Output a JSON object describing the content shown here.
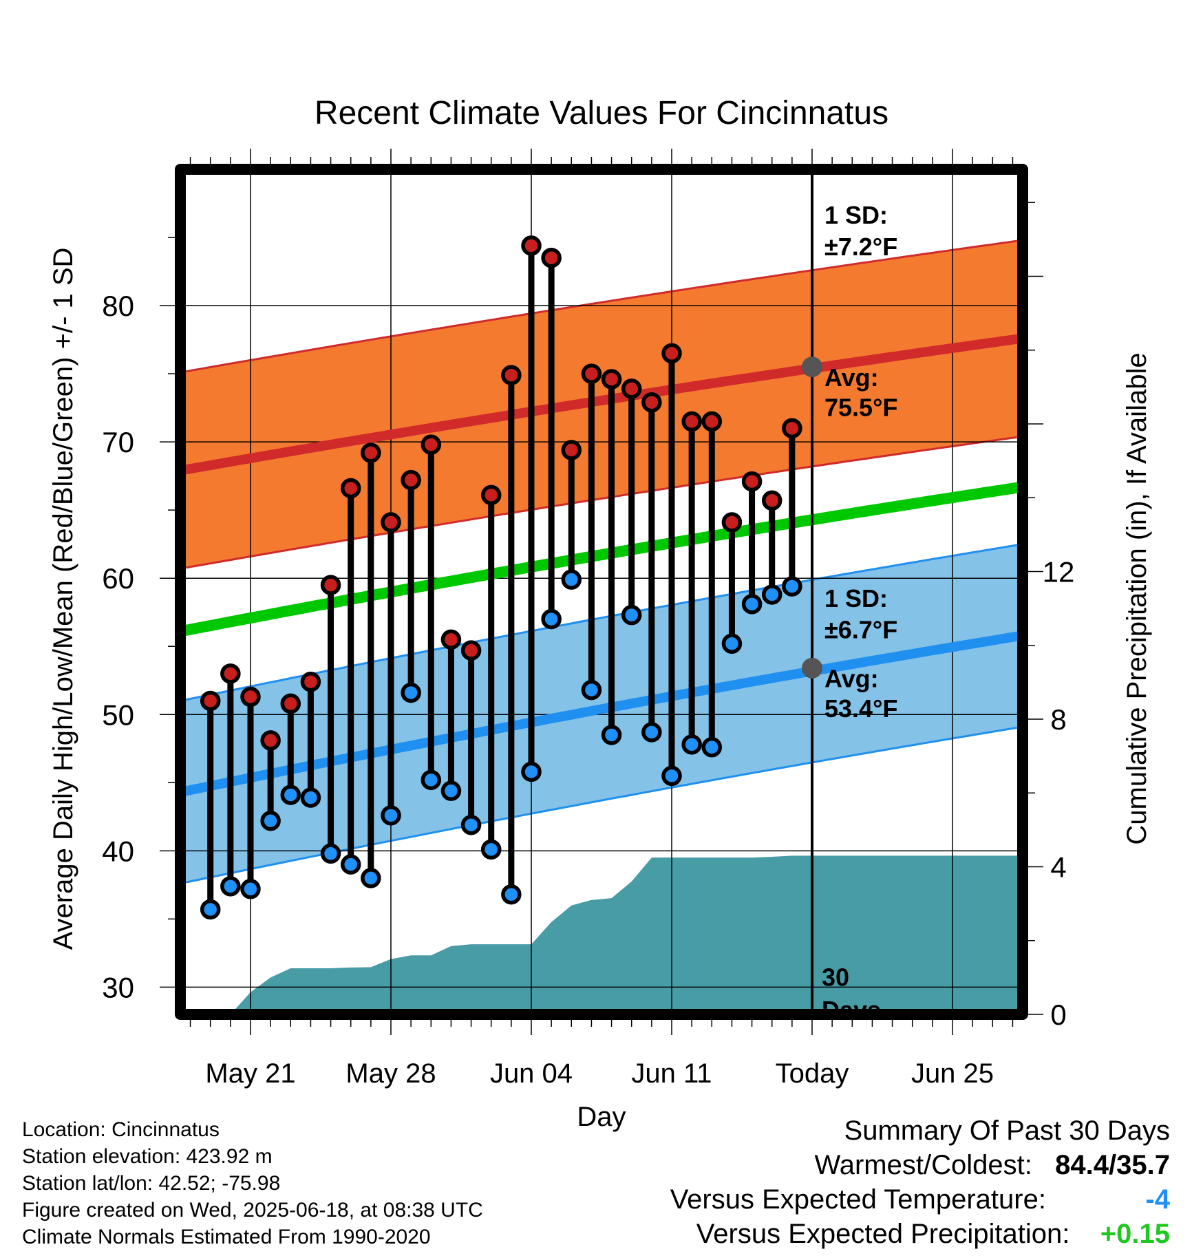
{
  "chart_data": {
    "type": "line",
    "title": "Recent Climate Values For Cincinnatus",
    "xlabel": "Day",
    "ylabel": "Average Daily High/Low/Mean (Red/Blue/Green) +/- 1 SD",
    "ylabel_right": "Cumulative Precipitation (in), If Available",
    "x_ticks": [
      "May 21",
      "May 28",
      "Jun 04",
      "Jun 11",
      "Today",
      "Jun 25"
    ],
    "x_tick_days": [
      3,
      10,
      17,
      24,
      31,
      38
    ],
    "xlim": [
      -0.5,
      41.5
    ],
    "ylim": [
      28,
      90
    ],
    "y_ticks": [
      30,
      40,
      50,
      60,
      70,
      80
    ],
    "y2lim": [
      0,
      22.9
    ],
    "y2_ticks": [
      0,
      4,
      8,
      12
    ],
    "grid": true,
    "days": [
      1,
      2,
      3,
      4,
      5,
      6,
      7,
      8,
      9,
      10,
      11,
      12,
      13,
      14,
      15,
      16,
      17,
      18,
      19,
      20,
      21,
      22,
      23,
      24,
      25,
      26,
      27,
      28,
      29,
      30
    ],
    "observed_high": [
      51.0,
      53.0,
      51.3,
      48.1,
      50.8,
      52.4,
      59.5,
      66.6,
      69.2,
      64.1,
      67.2,
      69.8,
      55.5,
      54.7,
      66.1,
      74.9,
      84.4,
      83.5,
      69.4,
      75.0,
      74.6,
      73.9,
      72.9,
      76.5,
      71.5,
      71.5,
      64.1,
      67.1,
      65.7,
      71.0
    ],
    "observed_low": [
      35.7,
      37.4,
      37.2,
      42.2,
      44.1,
      43.9,
      39.8,
      39.0,
      38.0,
      42.6,
      51.6,
      45.2,
      44.4,
      41.9,
      40.1,
      36.8,
      45.8,
      57.0,
      59.9,
      51.8,
      48.5,
      57.3,
      48.7,
      45.5,
      47.8,
      47.6,
      55.2,
      58.1,
      58.8,
      59.4
    ],
    "normal_high": {
      "start": 67.9,
      "end": 77.6,
      "today": 75.5,
      "sd": 7.2
    },
    "normal_low": {
      "start": 44.3,
      "end": 55.8,
      "today": 53.4,
      "sd": 6.7
    },
    "normal_mean": {
      "start": 56.1,
      "end": 66.7
    },
    "cumulative_precip_days": [
      2,
      3,
      4,
      5,
      6,
      7,
      8,
      9,
      10,
      11,
      12,
      13,
      14,
      15,
      16,
      17,
      18,
      19,
      20,
      21,
      22,
      23,
      24,
      25,
      26,
      27,
      28,
      29,
      30,
      31,
      41.5
    ],
    "cumulative_precip": [
      0.0,
      0.6,
      1.0,
      1.25,
      1.25,
      1.25,
      1.27,
      1.28,
      1.5,
      1.6,
      1.6,
      1.85,
      1.9,
      1.9,
      1.9,
      1.9,
      2.5,
      2.95,
      3.1,
      3.15,
      3.6,
      4.25,
      4.25,
      4.25,
      4.25,
      4.25,
      4.25,
      4.27,
      4.3,
      4.3,
      4.3
    ],
    "colors": {
      "high_band": "#f47a30",
      "high_line": "#d02a2a",
      "low_band": "#84c2e8",
      "low_line": "#1f8ff0",
      "mean_line": "#00c800",
      "precip": "#489ca6",
      "high_marker": "#c81e1e",
      "low_marker": "#1f90f5"
    },
    "annotations": {
      "high_sd_label": "1 SD:",
      "high_sd_value": "±7.2°F",
      "high_avg_label": "Avg:",
      "high_avg_value": "75.5°F",
      "low_sd_label": "1 SD:",
      "low_sd_value": "±6.7°F",
      "low_avg_label": "Avg:",
      "low_avg_value": "53.4°F",
      "window_number": "30",
      "window_label": "Days"
    }
  },
  "footer": {
    "location": "Location: Cincinnatus",
    "elevation": "Station elevation: 423.92 m",
    "latlon": "Station lat/lon: 42.52; -75.98",
    "created": "Figure created on Wed, 2025-06-18, at 08:38 UTC",
    "normals": "Climate Normals Estimated From 1990-2020"
  },
  "summary": {
    "title": "Summary Of Past 30 Days",
    "warm_cold_label": "Warmest/Coldest:",
    "warm_cold_value": "84.4/35.7",
    "temp_label": "Versus Expected Temperature:",
    "temp_value": "-4",
    "temp_color": "#1f90f5",
    "precip_label": "Versus Expected Precipitation:",
    "precip_value": "+0.15",
    "precip_color": "#1ec81e"
  }
}
